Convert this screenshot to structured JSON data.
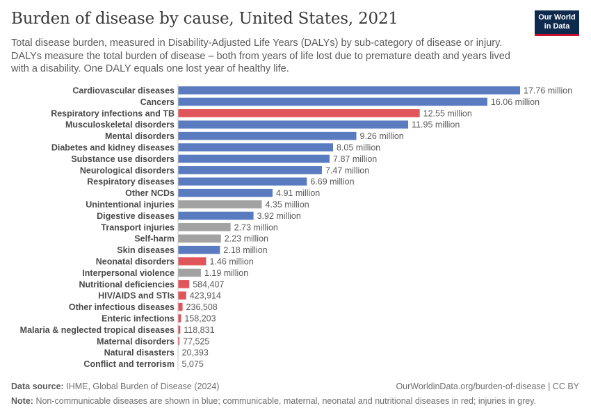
{
  "header": {
    "title": "Burden of disease by cause, United States, 2021",
    "subtitle": "Total disease burden, measured in Disability-Adjusted Life Years (DALYs) by sub-category of disease or injury. DALYs measure the total burden of disease – both from years of life lost due to premature death and years lived with a disability. One DALY equals one lost year of healthy life.",
    "logo_line1": "Our World",
    "logo_line2": "in Data"
  },
  "colors": {
    "ncd": "#5a7bbf",
    "communicable": "#e0555a",
    "injury": "#a2a2a2",
    "logo_bg": "#0e2a4d",
    "logo_accent": "#c8102e"
  },
  "chart_data": {
    "type": "bar",
    "orientation": "horizontal",
    "title": "Burden of disease by cause, United States, 2021",
    "unit": "DALYs",
    "categories": [
      "Cardiovascular diseases",
      "Cancers",
      "Respiratory infections and TB",
      "Musculoskeletal disorders",
      "Mental disorders",
      "Diabetes and kidney diseases",
      "Substance use disorders",
      "Neurological disorders",
      "Respiratory diseases",
      "Other NCDs",
      "Unintentional injuries",
      "Digestive diseases",
      "Transport injuries",
      "Self-harm",
      "Skin diseases",
      "Neonatal disorders",
      "Interpersonal violence",
      "Nutritional deficiencies",
      "HIV/AIDS and STIs",
      "Other infectious diseases",
      "Enteric infections",
      "Malaria & neglected tropical diseases",
      "Maternal disorders",
      "Natural disasters",
      "Conflict and terrorism"
    ],
    "values": [
      17760000,
      16060000,
      12550000,
      11950000,
      9260000,
      8050000,
      7870000,
      7470000,
      6690000,
      4910000,
      4350000,
      3920000,
      2730000,
      2230000,
      2180000,
      1460000,
      1190000,
      584407,
      423914,
      236508,
      158203,
      118831,
      77525,
      20393,
      5075
    ],
    "labels": [
      "17.76 million",
      "16.06 million",
      "12.55 million",
      "11.95 million",
      "9.26 million",
      "8.05 million",
      "7.87 million",
      "7.47 million",
      "6.69 million",
      "4.91 million",
      "4.35 million",
      "3.92 million",
      "2.73 million",
      "2.23 million",
      "2.18 million",
      "1.46 million",
      "1.19 million",
      "584,407",
      "423,914",
      "236,508",
      "158,203",
      "118,831",
      "77,525",
      "20,393",
      "5,075"
    ],
    "groups": [
      "ncd",
      "ncd",
      "communicable",
      "ncd",
      "ncd",
      "ncd",
      "ncd",
      "ncd",
      "ncd",
      "ncd",
      "injury",
      "ncd",
      "injury",
      "injury",
      "ncd",
      "communicable",
      "injury",
      "communicable",
      "communicable",
      "communicable",
      "communicable",
      "communicable",
      "communicable",
      "injury",
      "injury"
    ],
    "xlim": [
      0,
      17760000
    ],
    "grid": false,
    "legend": "none (explained in note)"
  },
  "footer": {
    "source_label": "Data source:",
    "source_text": "IHME, Global Burden of Disease (2024)",
    "url_text": "OurWorldinData.org/burden-of-disease | CC BY",
    "note_label": "Note:",
    "note_text": "Non-communicable diseases are shown in blue; communicable, maternal, neonatal and nutritional diseases in red; injuries in grey."
  }
}
